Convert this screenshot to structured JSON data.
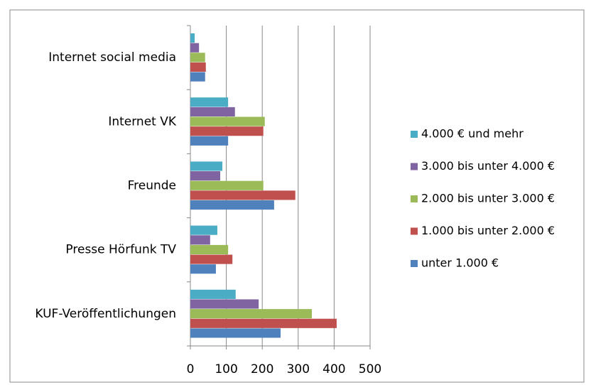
{
  "chart_data": {
    "type": "hbar",
    "categories": [
      "Internet social media",
      "Internet VK",
      "Freunde",
      "Presse Hörfunk TV",
      "KUF-Veröffentlichungen"
    ],
    "series": [
      {
        "name": "4.000 € und mehr",
        "color": "#4bacc6",
        "values": [
          12,
          105,
          89,
          75,
          126
        ]
      },
      {
        "name": "3.000 bis unter 4.000 €",
        "color": "#8064a2",
        "values": [
          24,
          124,
          83,
          55,
          190
        ]
      },
      {
        "name": "2.000 bis unter 3.000 €",
        "color": "#9bbb59",
        "values": [
          41,
          207,
          203,
          105,
          338
        ]
      },
      {
        "name": "1.000 bis unter 2.000 €",
        "color": "#c0504d",
        "values": [
          43,
          203,
          292,
          117,
          407
        ]
      },
      {
        "name": "unter 1.000 €",
        "color": "#4f81bd",
        "values": [
          41,
          105,
          233,
          71,
          251
        ]
      }
    ],
    "xlim": [
      0,
      500
    ],
    "xticks": [
      0,
      100,
      200,
      300,
      400,
      500
    ],
    "grid": true,
    "legend": "right"
  }
}
